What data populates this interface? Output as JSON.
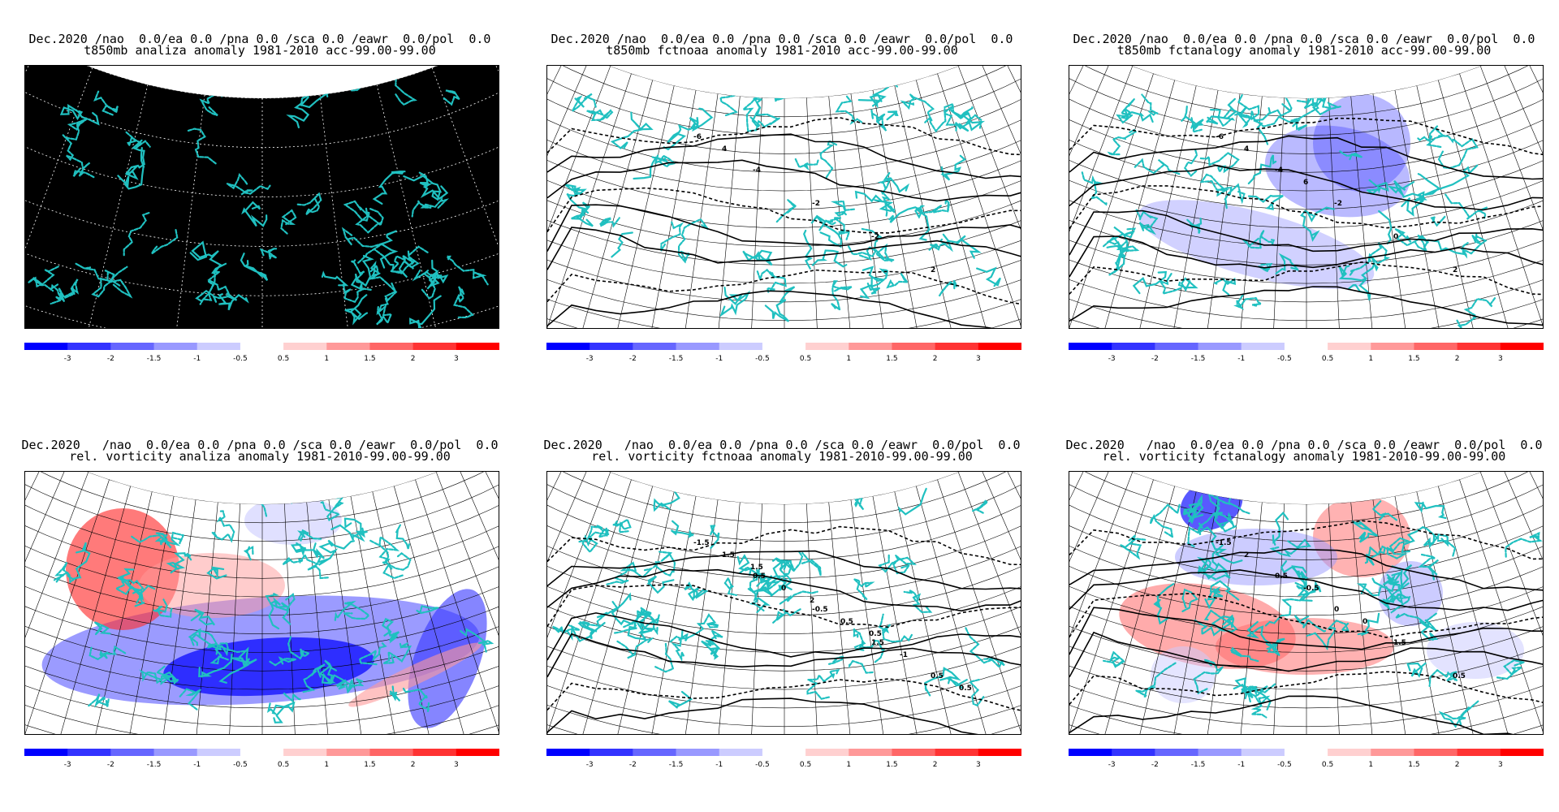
{
  "colorbar": {
    "colors": [
      "#0000ff",
      "#3333ff",
      "#6666ff",
      "#9999ff",
      "#ccccff",
      "#ffffff",
      "#ffd0d0",
      "#ff9999",
      "#ff6666",
      "#ff3333",
      "#ff0000"
    ],
    "labels": [
      "-3",
      "-2",
      "-1.5",
      "-1",
      "-0.5",
      "0.5",
      "1",
      "1.5",
      "2",
      "3"
    ]
  },
  "accent": {
    "coast": "#20c0c0",
    "black": "#000000"
  },
  "panels": [
    {
      "id": "t850-analiza",
      "title1": "Dec.2020 /nao  0.0/ea 0.0 /pna 0.0 /sca 0.0 /eawr  0.0/pol  0.0",
      "title2": "t850mb analiza anomaly 1981-2010 acc-99.00-99.00",
      "style": "black",
      "contours": []
    },
    {
      "id": "t850-fctnoaa",
      "title1": "Dec.2020 /nao  0.0/ea 0.0 /pna 0.0 /sca 0.0 /eawr  0.0/pol  0.0",
      "title2": "t850mb fctnoaa anomaly 1981-2010 acc-99.00-99.00",
      "style": "grid",
      "contours": [
        "-6",
        "-4",
        "-2",
        "-2",
        "2",
        "4"
      ]
    },
    {
      "id": "t850-fctanalogy",
      "title1": "Dec.2020 /nao  0.0/ea 0.0 /pna 0.0 /sca 0.0 /eawr  0.0/pol  0.0",
      "title2": "t850mb fctanalogy anomaly 1981-2010 acc-99.00-99.00",
      "style": "grid",
      "contours": [
        "-6",
        "-4",
        "-2",
        "0",
        "2",
        "4",
        "6"
      ]
    },
    {
      "id": "vort-analiza",
      "title1": "Dec.2020   /nao  0.0/ea 0.0 /pna 0.0 /sca 0.0 /eawr  0.0/pol  0.0",
      "title2": "rel. vorticity analiza anomaly 1981-2010-99.00-99.00",
      "style": "grid",
      "contours": []
    },
    {
      "id": "vort-fctnoaa",
      "title1": "Dec.2020   /nao  0.0/ea 0.0 /pna 0.0 /sca 0.0 /eawr  0.0/pol  0.0",
      "title2": "rel. vorticity fctnoaa anomaly 1981-2010-99.00-99.00",
      "style": "grid",
      "contours": [
        "-1.5",
        "0.5",
        "-0.5",
        "1.5",
        "0.5",
        "1.5",
        "0",
        "0.5",
        "-1",
        "0.5",
        "1.5",
        "2",
        "0.5"
      ]
    },
    {
      "id": "vort-fctanalogy",
      "title1": "Dec.2020   /nao  0.0/ea 0.0 /pna 0.0 /sca 0.0 /eawr  0.0/pol  0.0",
      "title2": "rel. vorticity fctanalogy anomaly 1981-2010-99.00-99.00",
      "style": "grid",
      "contours": [
        "-1.5",
        "0.5",
        "0",
        "1.5",
        "0.5",
        "2",
        "-0.5",
        "0"
      ]
    }
  ]
}
